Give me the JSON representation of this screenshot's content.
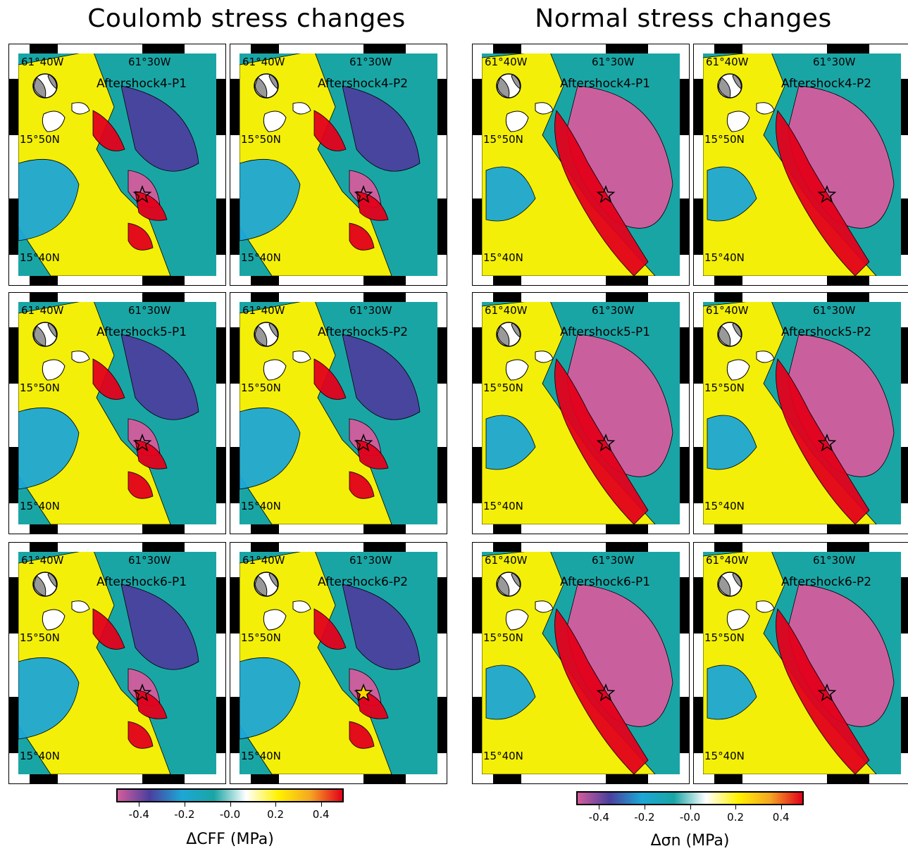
{
  "headings": {
    "left": "Coulomb stress changes",
    "right": "Normal stress changes"
  },
  "map_labels": {
    "lon_west": "61°40W",
    "lon_east": "61°30W",
    "lat_north": "15°50N",
    "lat_south": "15°40N"
  },
  "panels": [
    {
      "title": "Aftershock4-P1",
      "group": "coulomb",
      "star": "open"
    },
    {
      "title": "Aftershock4-P2",
      "group": "coulomb",
      "star": "open"
    },
    {
      "title": "Aftershock4-P1",
      "group": "normal",
      "star": "open"
    },
    {
      "title": "Aftershock4-P2",
      "group": "normal",
      "star": "open"
    },
    {
      "title": "Aftershock5-P1",
      "group": "coulomb",
      "star": "open"
    },
    {
      "title": "Aftershock5-P2",
      "group": "coulomb",
      "star": "open"
    },
    {
      "title": "Aftershock5-P1",
      "group": "normal",
      "star": "open"
    },
    {
      "title": "Aftershock5-P2",
      "group": "normal",
      "star": "open"
    },
    {
      "title": "Aftershock6-P1",
      "group": "coulomb",
      "star": "open"
    },
    {
      "title": "Aftershock6-P2",
      "group": "coulomb",
      "star": "yellow"
    },
    {
      "title": "Aftershock6-P1",
      "group": "normal",
      "star": "open"
    },
    {
      "title": "Aftershock6-P2",
      "group": "normal",
      "star": "open"
    }
  ],
  "colorbars": {
    "left": {
      "title": "ΔCFF (MPa)",
      "ticks": [
        "-0.4",
        "-0.2",
        "-0.0",
        "0.2",
        "0.4"
      ],
      "range": [
        -0.5,
        0.5
      ]
    },
    "right": {
      "title": "Δσn (MPa)",
      "ticks": [
        "-0.4",
        "-0.2",
        "-0.0",
        "0.2",
        "0.4"
      ],
      "range": [
        -0.5,
        0.5
      ]
    }
  },
  "colors": {
    "neg_strong": "#d35c9c",
    "neg_mid": "#4b3f9e",
    "neg_weak": "#1ca7d6",
    "teal": "#1aa5a5",
    "zero": "#ffffff",
    "pos_weak": "#fff200",
    "pos_mid": "#f5a623",
    "pos_strong": "#e3001b"
  }
}
